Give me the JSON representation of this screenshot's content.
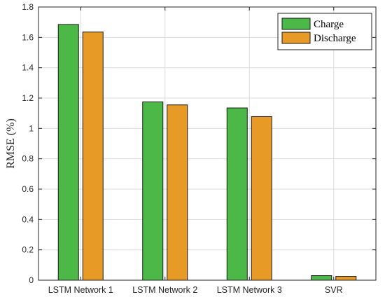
{
  "chart_data": {
    "type": "bar",
    "categories": [
      "LSTM Network 1",
      "LSTM Network 2",
      "LSTM Network 3",
      "SVR"
    ],
    "series": [
      {
        "name": "Charge",
        "values": [
          1.685,
          1.175,
          1.135,
          0.03
        ],
        "color": "#4cb848"
      },
      {
        "name": "Discharge",
        "values": [
          1.635,
          1.155,
          1.078,
          0.025
        ],
        "color": "#e89a26"
      }
    ],
    "title": "",
    "xlabel": "",
    "ylabel": "RMSE (%)",
    "ylim": [
      0,
      1.8
    ],
    "yticks": [
      0,
      0.2,
      0.4,
      0.6,
      0.8,
      1,
      1.2,
      1.4,
      1.6,
      1.8
    ],
    "ytick_labels": [
      "0",
      "0.2",
      "0.4",
      "0.6",
      "0.8",
      "1",
      "1.2",
      "1.4",
      "1.6",
      "1.8"
    ],
    "grid": true,
    "legend_position": "top-right"
  }
}
